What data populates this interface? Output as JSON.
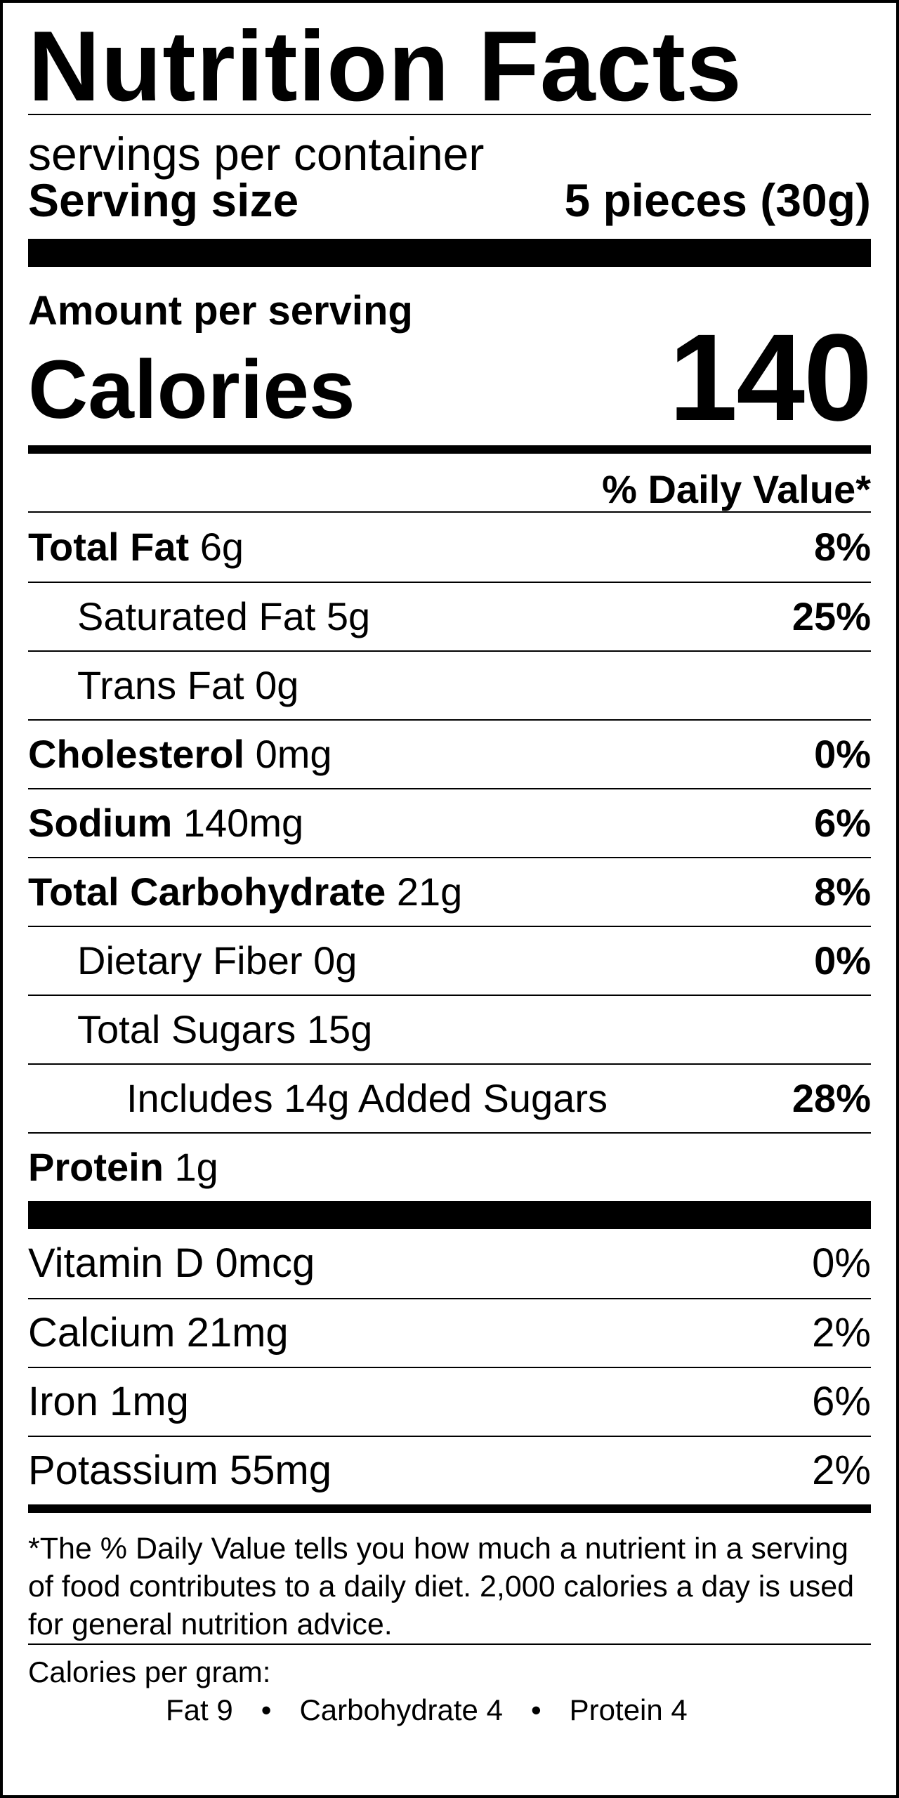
{
  "title": "Nutrition Facts",
  "servings_per_container": "servings per container",
  "serving_size": {
    "label": "Serving size",
    "value": "5 pieces (30g)"
  },
  "amount_per_serving": "Amount per serving",
  "calories": {
    "label": "Calories",
    "value": "140"
  },
  "daily_value_header": "% Daily Value*",
  "nutrients": [
    {
      "name": "Total Fat",
      "amount": "6g",
      "dv": "8%"
    },
    {
      "name": "Saturated Fat",
      "amount": "5g",
      "dv": "25%"
    },
    {
      "name": "Trans Fat",
      "amount": "0g",
      "dv": ""
    },
    {
      "name": "Cholesterol",
      "amount": "0mg",
      "dv": "0%"
    },
    {
      "name": "Sodium",
      "amount": "140mg",
      "dv": "6%"
    },
    {
      "name": "Total Carbohydrate",
      "amount": "21g",
      "dv": "8%"
    },
    {
      "name": "Dietary Fiber",
      "amount": "0g",
      "dv": "0%"
    },
    {
      "name": "Total Sugars",
      "amount": "15g",
      "dv": ""
    },
    {
      "name": "Includes 14g Added Sugars",
      "amount": "",
      "dv": "28%"
    },
    {
      "name": "Protein",
      "amount": "1g",
      "dv": ""
    }
  ],
  "vitamins": [
    {
      "name": "Vitamin D 0mcg",
      "dv": "0%"
    },
    {
      "name": "Calcium 21mg",
      "dv": "2%"
    },
    {
      "name": "Iron 1mg",
      "dv": "6%"
    },
    {
      "name": "Potassium 55mg",
      "dv": "2%"
    }
  ],
  "footnote": "*The % Daily Value tells you how much a nutrient in a serving of food contributes to a daily diet. 2,000 calories a day is used for general nutrition advice.",
  "calories_per_gram": {
    "label": "Calories per gram:",
    "fat": "Fat 9",
    "carbohydrate": "Carbohydrate 4",
    "protein": "Protein 4",
    "separator": "•"
  }
}
